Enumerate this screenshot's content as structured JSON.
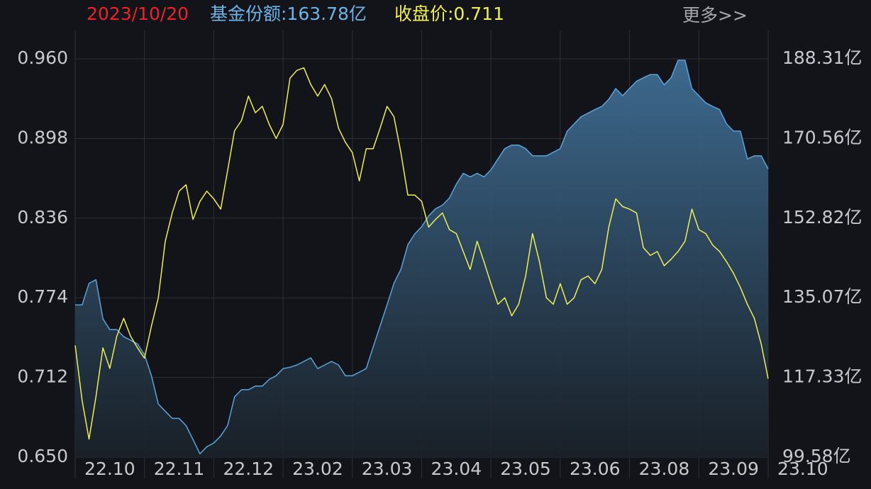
{
  "chart_data": {
    "type": "line",
    "header": {
      "date": "2023/10/20",
      "share": "基金份额:163.78亿",
      "price": "收盘价:0.711",
      "more": "更多>>"
    },
    "xlim": [
      0,
      100
    ],
    "xticks": [
      {
        "value": 0,
        "label": "22.10"
      },
      {
        "value": 10,
        "label": "22.11"
      },
      {
        "value": 20,
        "label": "22.12"
      },
      {
        "value": 30,
        "label": "23.02"
      },
      {
        "value": 40,
        "label": "23.03"
      },
      {
        "value": 50,
        "label": "23.04"
      },
      {
        "value": 60,
        "label": "23.05"
      },
      {
        "value": 70,
        "label": "23.06"
      },
      {
        "value": 80,
        "label": "23.08"
      },
      {
        "value": 90,
        "label": "23.09"
      },
      {
        "value": 100,
        "label": "23.10"
      }
    ],
    "ylim": [
      0.65,
      0.96
    ],
    "yticks": [
      {
        "value": 0.96,
        "label": "0.960"
      },
      {
        "value": 0.898,
        "label": "0.898"
      },
      {
        "value": 0.836,
        "label": "0.836"
      },
      {
        "value": 0.774,
        "label": "0.774"
      },
      {
        "value": 0.712,
        "label": "0.712"
      },
      {
        "value": 0.65,
        "label": "0.650"
      }
    ],
    "y2lim": [
      99.58,
      188.31
    ],
    "y2ticks": [
      {
        "value": 188.31,
        "label": "188.31亿"
      },
      {
        "value": 170.56,
        "label": "170.56亿"
      },
      {
        "value": 152.82,
        "label": "152.82亿"
      },
      {
        "value": 135.07,
        "label": "135.07亿"
      },
      {
        "value": 117.33,
        "label": "117.33亿"
      },
      {
        "value": 99.58,
        "label": "99.58亿"
      }
    ],
    "grid": true,
    "series": [
      {
        "name": "基金份额",
        "color": "#5ba4db",
        "axis": "y2",
        "fill": true,
        "values": [
          133.5,
          133.5,
          138.3,
          139.1,
          130.4,
          128.0,
          128.0,
          126.4,
          125.6,
          124.8,
          122.4,
          117.7,
          111.4,
          109.8,
          108.2,
          108.2,
          106.6,
          103.5,
          100.3,
          101.9,
          102.7,
          104.3,
          106.6,
          113.0,
          114.6,
          114.6,
          115.4,
          115.4,
          116.9,
          117.7,
          119.3,
          119.6,
          120.1,
          120.9,
          121.7,
          119.3,
          120.1,
          120.9,
          120.1,
          117.7,
          117.7,
          118.5,
          119.3,
          124.1,
          128.8,
          133.5,
          138.3,
          141.4,
          146.9,
          149.3,
          150.9,
          153.3,
          154.9,
          155.7,
          157.3,
          160.4,
          162.8,
          162.0,
          162.8,
          162.0,
          163.6,
          166.0,
          168.3,
          169.1,
          169.1,
          168.3,
          166.7,
          166.7,
          166.7,
          167.5,
          168.3,
          172.2,
          173.8,
          175.4,
          176.2,
          177.0,
          177.7,
          179.3,
          181.7,
          180.1,
          181.7,
          183.3,
          184.1,
          184.8,
          184.8,
          182.5,
          184.1,
          188.0,
          188.0,
          181.7,
          180.1,
          178.5,
          177.7,
          177.0,
          173.8,
          172.2,
          172.2,
          166.0,
          166.7,
          166.7,
          163.78
        ]
      },
      {
        "name": "收盘价",
        "color": "#eeee55",
        "axis": "y",
        "fill": false,
        "values": [
          0.737,
          0.694,
          0.664,
          0.697,
          0.735,
          0.719,
          0.744,
          0.758,
          0.744,
          0.735,
          0.727,
          0.752,
          0.774,
          0.818,
          0.84,
          0.857,
          0.862,
          0.835,
          0.849,
          0.857,
          0.851,
          0.843,
          0.873,
          0.904,
          0.912,
          0.931,
          0.918,
          0.923,
          0.909,
          0.898,
          0.909,
          0.945,
          0.951,
          0.953,
          0.94,
          0.931,
          0.94,
          0.929,
          0.906,
          0.895,
          0.887,
          0.865,
          0.89,
          0.89,
          0.906,
          0.923,
          0.915,
          0.887,
          0.854,
          0.854,
          0.849,
          0.829,
          0.835,
          0.84,
          0.827,
          0.824,
          0.81,
          0.796,
          0.818,
          0.802,
          0.785,
          0.769,
          0.774,
          0.76,
          0.769,
          0.791,
          0.824,
          0.802,
          0.774,
          0.769,
          0.785,
          0.769,
          0.774,
          0.788,
          0.791,
          0.785,
          0.796,
          0.829,
          0.851,
          0.845,
          0.843,
          0.84,
          0.813,
          0.807,
          0.81,
          0.799,
          0.804,
          0.81,
          0.818,
          0.843,
          0.827,
          0.824,
          0.815,
          0.81,
          0.802,
          0.793,
          0.782,
          0.769,
          0.758,
          0.738,
          0.711
        ]
      }
    ]
  }
}
